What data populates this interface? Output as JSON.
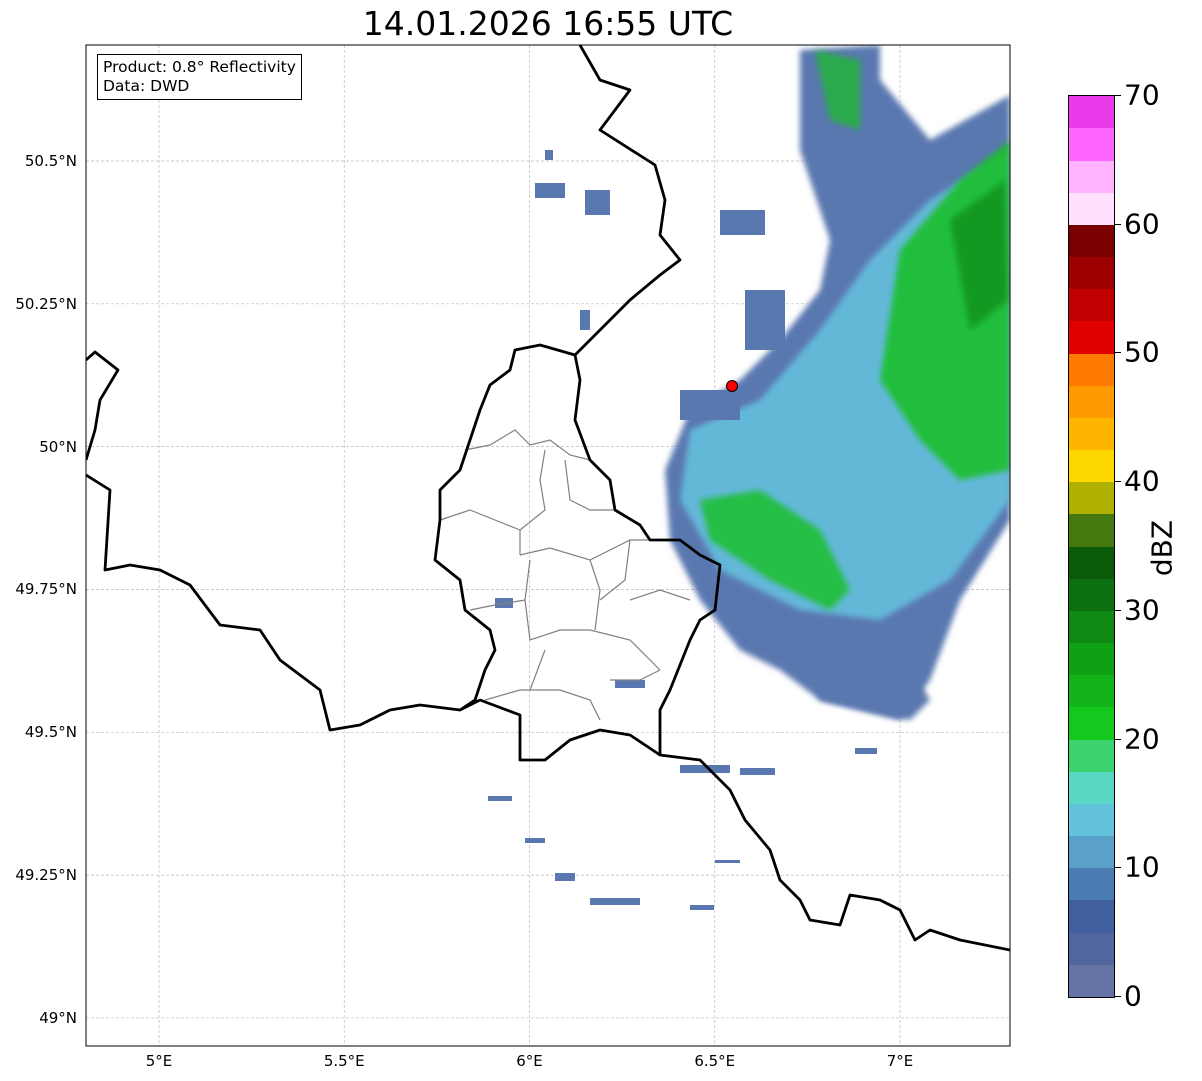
{
  "title": "14.01.2026 16:55 UTC",
  "legend": {
    "product": "Product: 0.8° Reflectivity",
    "data": "Data: DWD"
  },
  "axes": {
    "lat_ticks": [
      {
        "v": 50.5,
        "label": "50.5°N"
      },
      {
        "v": 50.25,
        "label": "50.25°N"
      },
      {
        "v": 50.0,
        "label": "50°N"
      },
      {
        "v": 49.75,
        "label": "49.75°N"
      },
      {
        "v": 49.5,
        "label": "49.5°N"
      },
      {
        "v": 49.25,
        "label": "49.25°N"
      },
      {
        "v": 49.0,
        "label": "49°N"
      }
    ],
    "lon_ticks": [
      {
        "v": 5.0,
        "label": "5°E"
      },
      {
        "v": 5.5,
        "label": "5.5°E"
      },
      {
        "v": 6.0,
        "label": "6°E"
      },
      {
        "v": 6.5,
        "label": "6.5°E"
      },
      {
        "v": 7.0,
        "label": "7°E"
      }
    ],
    "lon_range": [
      4.8,
      7.3
    ],
    "lat_range": [
      48.95,
      50.7
    ]
  },
  "radar_site": {
    "lon": 6.55,
    "lat": 50.11,
    "color": "#ff0000"
  },
  "colorbar": {
    "label": "dBZ",
    "min": 0,
    "max": 70,
    "step": 2.5,
    "ticks": [
      "0",
      "10",
      "20",
      "30",
      "40",
      "50",
      "60",
      "70"
    ],
    "colors": [
      "#6474a5",
      "#51669f",
      "#4160a0",
      "#4a7db4",
      "#5aa0c8",
      "#64c3dc",
      "#5ad7c3",
      "#3cd26e",
      "#14c81e",
      "#12b419",
      "#10a014",
      "#0e8a14",
      "#0d7010",
      "#0a5a0a",
      "#467810",
      "#b0b000",
      "#ffd700",
      "#ffb400",
      "#ff9a00",
      "#ff7a00",
      "#e00000",
      "#c00000",
      "#9c0000",
      "#7a0000",
      "#ffe0ff",
      "#ffb3ff",
      "#ff66ff",
      "#e93be9"
    ]
  }
}
